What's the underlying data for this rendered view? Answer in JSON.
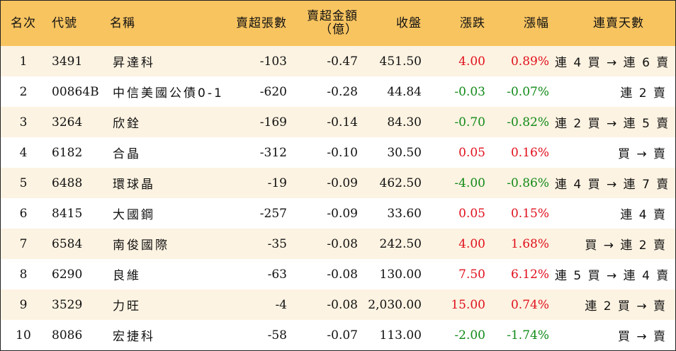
{
  "colors": {
    "header_bg": "#f8c460",
    "odd_row_bg": "#fdf3e2",
    "up": "#e0101c",
    "down": "#118a18"
  },
  "headers": {
    "rank": "名次",
    "code": "代號",
    "name": "名稱",
    "sell_volume": "賣超張數",
    "sell_amount_line1": "賣超金額",
    "sell_amount_line2": "（億）",
    "close": "收盤",
    "change": "漲跌",
    "change_pct": "漲幅",
    "streak": "連賣天數"
  },
  "rows": [
    {
      "rank": "1",
      "code": "3491",
      "name": "昇達科",
      "sell_volume": "-103",
      "sell_amount": "-0.47",
      "close": "451.50",
      "change": "4.00",
      "change_pct": "0.89%",
      "direction": "up",
      "streak": "連 4 買 → 連 6 賣"
    },
    {
      "rank": "2",
      "code": "00864B",
      "name": "中信美國公債0-1",
      "sell_volume": "-620",
      "sell_amount": "-0.28",
      "close": "44.84",
      "change": "-0.03",
      "change_pct": "-0.07%",
      "direction": "down",
      "streak": "連 2 賣"
    },
    {
      "rank": "3",
      "code": "3264",
      "name": "欣銓",
      "sell_volume": "-169",
      "sell_amount": "-0.14",
      "close": "84.30",
      "change": "-0.70",
      "change_pct": "-0.82%",
      "direction": "down",
      "streak": "連 2 買 → 連 5 賣"
    },
    {
      "rank": "4",
      "code": "6182",
      "name": "合晶",
      "sell_volume": "-312",
      "sell_amount": "-0.10",
      "close": "30.50",
      "change": "0.05",
      "change_pct": "0.16%",
      "direction": "up",
      "streak": "買 → 賣"
    },
    {
      "rank": "5",
      "code": "6488",
      "name": "環球晶",
      "sell_volume": "-19",
      "sell_amount": "-0.09",
      "close": "462.50",
      "change": "-4.00",
      "change_pct": "-0.86%",
      "direction": "down",
      "streak": "連 4 買 → 連 7 賣"
    },
    {
      "rank": "6",
      "code": "8415",
      "name": "大國鋼",
      "sell_volume": "-257",
      "sell_amount": "-0.09",
      "close": "33.60",
      "change": "0.05",
      "change_pct": "0.15%",
      "direction": "up",
      "streak": "連 4 賣"
    },
    {
      "rank": "7",
      "code": "6584",
      "name": "南俊國際",
      "sell_volume": "-35",
      "sell_amount": "-0.08",
      "close": "242.50",
      "change": "4.00",
      "change_pct": "1.68%",
      "direction": "up",
      "streak": "買 → 連 2 賣"
    },
    {
      "rank": "8",
      "code": "6290",
      "name": "良維",
      "sell_volume": "-63",
      "sell_amount": "-0.08",
      "close": "130.00",
      "change": "7.50",
      "change_pct": "6.12%",
      "direction": "up",
      "streak": "連 5 買 → 連 4 賣"
    },
    {
      "rank": "9",
      "code": "3529",
      "name": "力旺",
      "sell_volume": "-4",
      "sell_amount": "-0.08",
      "close": "2,030.00",
      "change": "15.00",
      "change_pct": "0.74%",
      "direction": "up",
      "streak": "連 2 買 → 賣"
    },
    {
      "rank": "10",
      "code": "8086",
      "name": "宏捷科",
      "sell_volume": "-58",
      "sell_amount": "-0.07",
      "close": "113.00",
      "change": "-2.00",
      "change_pct": "-1.74%",
      "direction": "down",
      "streak": "買 → 賣"
    }
  ]
}
